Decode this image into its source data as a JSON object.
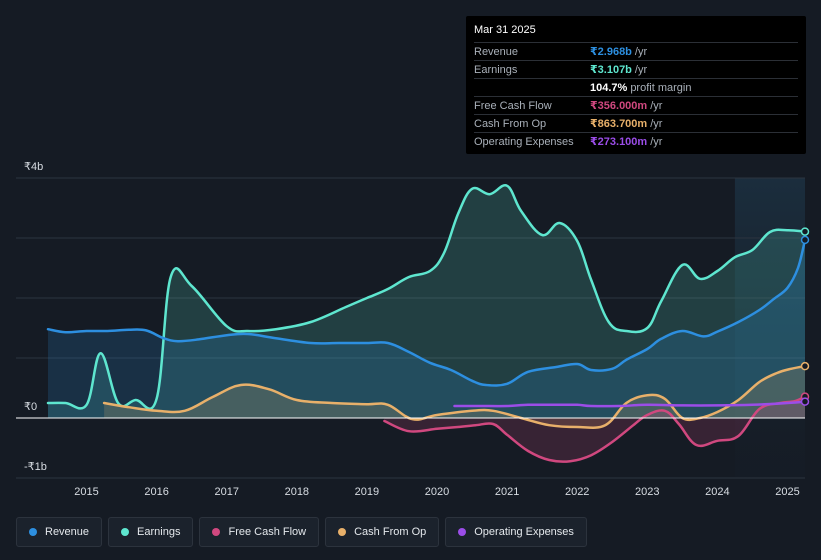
{
  "tooltip": {
    "date": "Mar 31 2025",
    "rows": [
      {
        "label": "Revenue",
        "value": "₹2.968b",
        "unit": "/yr",
        "color": "#2d8fe0"
      },
      {
        "label": "Earnings",
        "value": "₹3.107b",
        "unit": "/yr",
        "color": "#5ee6cf"
      },
      {
        "label": "",
        "value": "104.7%",
        "unit": "profit margin",
        "color": "#ffffff"
      },
      {
        "label": "Free Cash Flow",
        "value": "₹356.000m",
        "unit": "/yr",
        "color": "#d0487f"
      },
      {
        "label": "Cash From Op",
        "value": "₹863.700m",
        "unit": "/yr",
        "color": "#e8b06a"
      },
      {
        "label": "Operating Expenses",
        "value": "₹273.100m",
        "unit": "/yr",
        "color": "#9b4de8"
      }
    ]
  },
  "legend": [
    {
      "label": "Revenue",
      "color": "#2d8fe0"
    },
    {
      "label": "Earnings",
      "color": "#5ee6cf"
    },
    {
      "label": "Free Cash Flow",
      "color": "#d0487f"
    },
    {
      "label": "Cash From Op",
      "color": "#e8b06a"
    },
    {
      "label": "Operating Expenses",
      "color": "#9b4de8"
    }
  ],
  "chart_data": {
    "type": "area",
    "title": "",
    "xlabel": "",
    "ylabel": "",
    "xlim": [
      2014.45,
      2025.25
    ],
    "ylim": [
      -1,
      4
    ],
    "y_tick_labels": [
      {
        "value": 4,
        "label": "₹4b"
      },
      {
        "value": 0,
        "label": "₹0"
      },
      {
        "value": -1,
        "label": "-₹1b"
      }
    ],
    "x_tick_labels": [
      {
        "value": 2015,
        "label": "2015"
      },
      {
        "value": 2016,
        "label": "2016"
      },
      {
        "value": 2017,
        "label": "2017"
      },
      {
        "value": 2018,
        "label": "2018"
      },
      {
        "value": 2019,
        "label": "2019"
      },
      {
        "value": 2020,
        "label": "2020"
      },
      {
        "value": 2021,
        "label": "2021"
      },
      {
        "value": 2022,
        "label": "2022"
      },
      {
        "value": 2023,
        "label": "2023"
      },
      {
        "value": 2024,
        "label": "2024"
      },
      {
        "value": 2025,
        "label": "2025"
      }
    ],
    "highlight_from": 2024.25,
    "series": [
      {
        "name": "Revenue",
        "color": "#2d8fe0",
        "fill": true,
        "points": [
          [
            2014.45,
            1.48
          ],
          [
            2014.7,
            1.43
          ],
          [
            2015.0,
            1.45
          ],
          [
            2015.3,
            1.45
          ],
          [
            2015.6,
            1.47
          ],
          [
            2015.85,
            1.46
          ],
          [
            2016.1,
            1.33
          ],
          [
            2016.3,
            1.28
          ],
          [
            2016.6,
            1.31
          ],
          [
            2017.0,
            1.38
          ],
          [
            2017.3,
            1.4
          ],
          [
            2017.7,
            1.33
          ],
          [
            2018.2,
            1.25
          ],
          [
            2018.6,
            1.25
          ],
          [
            2019.0,
            1.25
          ],
          [
            2019.3,
            1.25
          ],
          [
            2019.6,
            1.1
          ],
          [
            2019.9,
            0.92
          ],
          [
            2020.2,
            0.8
          ],
          [
            2020.5,
            0.62
          ],
          [
            2020.7,
            0.55
          ],
          [
            2021.0,
            0.57
          ],
          [
            2021.3,
            0.77
          ],
          [
            2021.7,
            0.85
          ],
          [
            2022.0,
            0.9
          ],
          [
            2022.2,
            0.8
          ],
          [
            2022.5,
            0.82
          ],
          [
            2022.7,
            0.97
          ],
          [
            2023.0,
            1.15
          ],
          [
            2023.2,
            1.32
          ],
          [
            2023.5,
            1.45
          ],
          [
            2023.8,
            1.36
          ],
          [
            2024.0,
            1.44
          ],
          [
            2024.3,
            1.6
          ],
          [
            2024.6,
            1.8
          ],
          [
            2024.8,
            1.98
          ],
          [
            2025.0,
            2.17
          ],
          [
            2025.15,
            2.5
          ],
          [
            2025.25,
            2.968
          ]
        ]
      },
      {
        "name": "Earnings",
        "color": "#5ee6cf",
        "fill": true,
        "points": [
          [
            2014.45,
            0.25
          ],
          [
            2014.7,
            0.25
          ],
          [
            2015.0,
            0.22
          ],
          [
            2015.2,
            1.08
          ],
          [
            2015.45,
            0.25
          ],
          [
            2015.7,
            0.3
          ],
          [
            2016.0,
            0.32
          ],
          [
            2016.2,
            2.35
          ],
          [
            2016.5,
            2.2
          ],
          [
            2017.0,
            1.53
          ],
          [
            2017.3,
            1.45
          ],
          [
            2017.7,
            1.48
          ],
          [
            2018.2,
            1.6
          ],
          [
            2018.7,
            1.85
          ],
          [
            2019.0,
            2.0
          ],
          [
            2019.3,
            2.15
          ],
          [
            2019.6,
            2.35
          ],
          [
            2019.9,
            2.45
          ],
          [
            2020.1,
            2.75
          ],
          [
            2020.3,
            3.4
          ],
          [
            2020.5,
            3.82
          ],
          [
            2020.75,
            3.73
          ],
          [
            2021.0,
            3.87
          ],
          [
            2021.2,
            3.45
          ],
          [
            2021.5,
            3.05
          ],
          [
            2021.75,
            3.25
          ],
          [
            2022.0,
            2.95
          ],
          [
            2022.2,
            2.3
          ],
          [
            2022.45,
            1.6
          ],
          [
            2022.7,
            1.45
          ],
          [
            2023.0,
            1.5
          ],
          [
            2023.2,
            1.95
          ],
          [
            2023.5,
            2.55
          ],
          [
            2023.75,
            2.32
          ],
          [
            2024.0,
            2.45
          ],
          [
            2024.25,
            2.68
          ],
          [
            2024.5,
            2.8
          ],
          [
            2024.75,
            3.1
          ],
          [
            2025.0,
            3.13
          ],
          [
            2025.25,
            3.107
          ]
        ]
      },
      {
        "name": "Free Cash Flow",
        "color": "#d0487f",
        "fill": true,
        "points": [
          [
            2019.25,
            -0.05
          ],
          [
            2019.6,
            -0.22
          ],
          [
            2020.0,
            -0.18
          ],
          [
            2020.3,
            -0.15
          ],
          [
            2020.55,
            -0.12
          ],
          [
            2020.8,
            -0.1
          ],
          [
            2021.0,
            -0.28
          ],
          [
            2021.3,
            -0.55
          ],
          [
            2021.6,
            -0.7
          ],
          [
            2021.9,
            -0.72
          ],
          [
            2022.2,
            -0.62
          ],
          [
            2022.5,
            -0.4
          ],
          [
            2022.8,
            -0.12
          ],
          [
            2023.0,
            0.05
          ],
          [
            2023.25,
            0.12
          ],
          [
            2023.45,
            -0.1
          ],
          [
            2023.7,
            -0.45
          ],
          [
            2024.0,
            -0.38
          ],
          [
            2024.3,
            -0.3
          ],
          [
            2024.6,
            0.15
          ],
          [
            2024.9,
            0.25
          ],
          [
            2025.1,
            0.28
          ],
          [
            2025.25,
            0.356
          ]
        ]
      },
      {
        "name": "Cash From Op",
        "color": "#e8b06a",
        "fill": true,
        "points": [
          [
            2015.25,
            0.25
          ],
          [
            2015.6,
            0.18
          ],
          [
            2016.0,
            0.12
          ],
          [
            2016.4,
            0.12
          ],
          [
            2016.8,
            0.35
          ],
          [
            2017.2,
            0.55
          ],
          [
            2017.6,
            0.48
          ],
          [
            2018.0,
            0.3
          ],
          [
            2018.5,
            0.25
          ],
          [
            2019.0,
            0.23
          ],
          [
            2019.3,
            0.22
          ],
          [
            2019.65,
            -0.02
          ],
          [
            2020.0,
            0.05
          ],
          [
            2020.5,
            0.12
          ],
          [
            2020.8,
            0.12
          ],
          [
            2021.2,
            0.0
          ],
          [
            2021.6,
            -0.12
          ],
          [
            2022.0,
            -0.15
          ],
          [
            2022.4,
            -0.12
          ],
          [
            2022.7,
            0.25
          ],
          [
            2023.0,
            0.38
          ],
          [
            2023.25,
            0.32
          ],
          [
            2023.5,
            0.0
          ],
          [
            2023.75,
            0.0
          ],
          [
            2024.0,
            0.1
          ],
          [
            2024.3,
            0.3
          ],
          [
            2024.6,
            0.6
          ],
          [
            2024.85,
            0.75
          ],
          [
            2025.05,
            0.82
          ],
          [
            2025.25,
            0.8637
          ]
        ]
      },
      {
        "name": "Operating Expenses",
        "color": "#9b4de8",
        "fill": false,
        "points": [
          [
            2020.25,
            0.2
          ],
          [
            2020.6,
            0.2
          ],
          [
            2021.0,
            0.2
          ],
          [
            2021.3,
            0.22
          ],
          [
            2021.7,
            0.22
          ],
          [
            2022.0,
            0.22
          ],
          [
            2022.2,
            0.2
          ],
          [
            2022.6,
            0.2
          ],
          [
            2023.0,
            0.22
          ],
          [
            2023.5,
            0.21
          ],
          [
            2024.0,
            0.21
          ],
          [
            2024.5,
            0.22
          ],
          [
            2025.0,
            0.25
          ],
          [
            2025.25,
            0.2731
          ]
        ]
      }
    ]
  }
}
